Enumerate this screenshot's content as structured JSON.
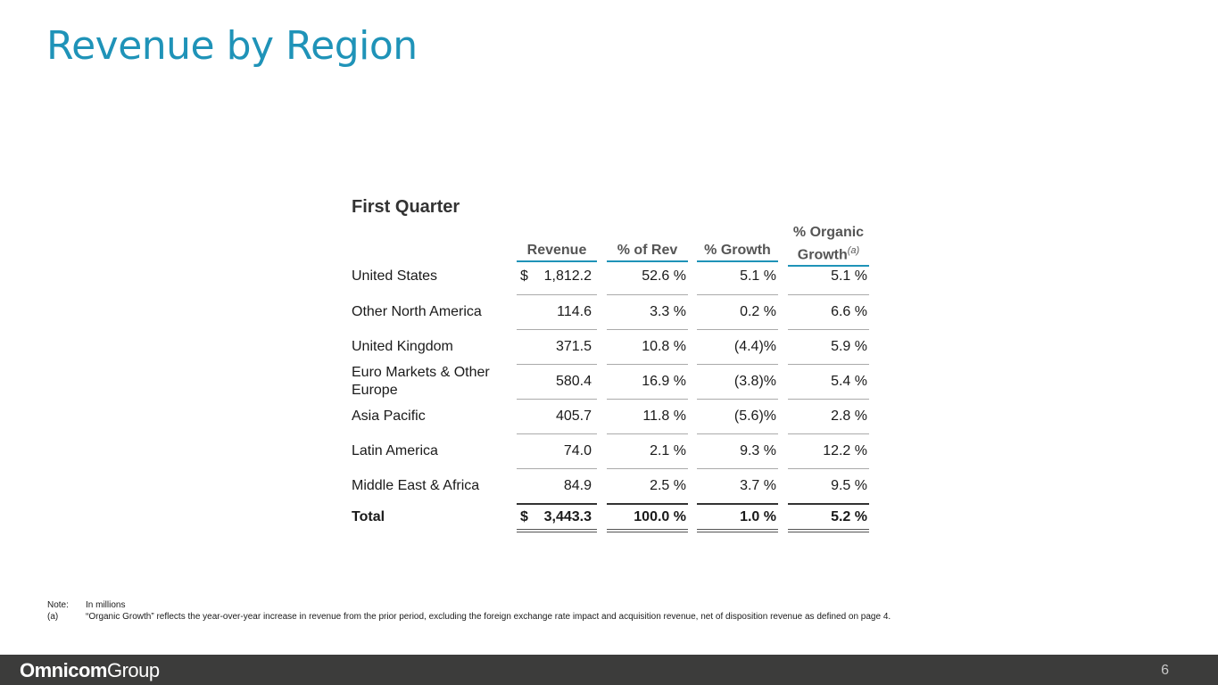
{
  "title": "Revenue by Region",
  "section_title": "First Quarter",
  "columns": {
    "revenue": "Revenue",
    "pct_rev": "% of Rev",
    "pct_growth": "% Growth",
    "organic_line1": "% Organic",
    "organic_line2": "Growth",
    "organic_footnote_marker": "(a)"
  },
  "rows": [
    {
      "region": "United States",
      "dollar": "$",
      "revenue": "1,812.2",
      "pct_rev": "52.6 %",
      "pct_growth": "5.1 %",
      "organic": "5.1 %"
    },
    {
      "region": "Other North America",
      "dollar": "",
      "revenue": "114.6",
      "pct_rev": "3.3 %",
      "pct_growth": "0.2 %",
      "organic": "6.6 %"
    },
    {
      "region": "United Kingdom",
      "dollar": "",
      "revenue": "371.5",
      "pct_rev": "10.8 %",
      "pct_growth": "(4.4)%",
      "organic": "5.9 %"
    },
    {
      "region": "Euro Markets & Other Europe",
      "dollar": "",
      "revenue": "580.4",
      "pct_rev": "16.9 %",
      "pct_growth": "(3.8)%",
      "organic": "5.4 %"
    },
    {
      "region": "Asia Pacific",
      "dollar": "",
      "revenue": "405.7",
      "pct_rev": "11.8 %",
      "pct_growth": "(5.6)%",
      "organic": "2.8 %"
    },
    {
      "region": "Latin America",
      "dollar": "",
      "revenue": "74.0",
      "pct_rev": "2.1 %",
      "pct_growth": "9.3 %",
      "organic": "12.2 %"
    },
    {
      "region": "Middle East & Africa",
      "dollar": "",
      "revenue": "84.9",
      "pct_rev": "2.5 %",
      "pct_growth": "3.7 %",
      "organic": "9.5 %"
    }
  ],
  "total": {
    "label": "Total",
    "dollar": "$",
    "revenue": "3,443.3",
    "pct_rev": "100.0 %",
    "pct_growth": "1.0 %",
    "organic": "5.2 %"
  },
  "notes": {
    "note_key": "Note:",
    "note_text": "In millions",
    "a_key": "(a)",
    "a_text": "“Organic Growth” reflects the year-over-year increase in revenue from the prior period, excluding the foreign exchange rate impact and acquisition revenue, net of disposition revenue as defined on page 4."
  },
  "footer": {
    "logo_bold": "Omnicom",
    "logo_light": "Group",
    "page_number": "6"
  }
}
